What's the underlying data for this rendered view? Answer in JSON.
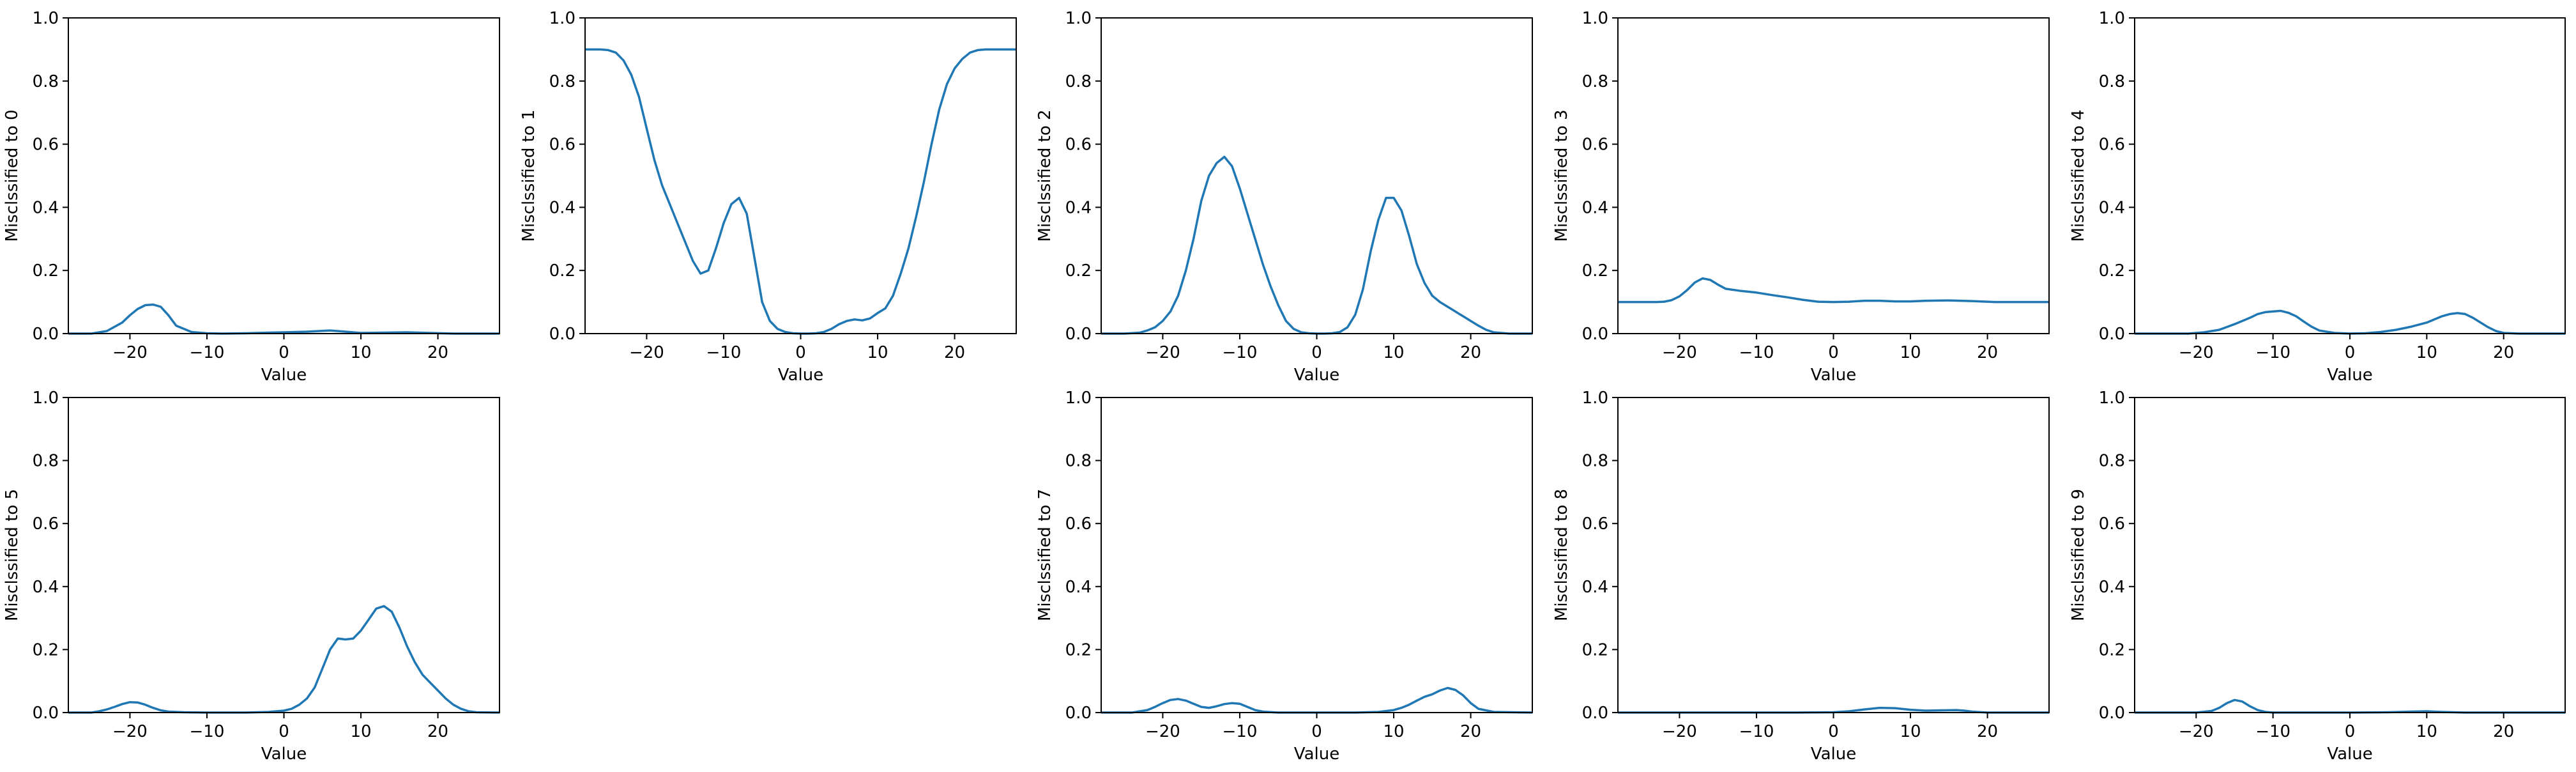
{
  "chart_data": [
    {
      "type": "line",
      "xlabel": "Value",
      "ylabel": "Misclssified to 0",
      "xlim": [
        -28,
        28
      ],
      "ylim": [
        0,
        1
      ],
      "x_ticks": [
        -20,
        -10,
        0,
        10,
        20
      ],
      "y_ticks": [
        0.0,
        0.2,
        0.4,
        0.6,
        0.8,
        1.0
      ],
      "series": [
        {
          "color": "#1f77b4",
          "x": [
            -28,
            -25,
            -23,
            -21,
            -20,
            -19,
            -18,
            -17,
            -16,
            -15,
            -14,
            -12,
            -10,
            -8,
            -5,
            -2,
            0,
            3,
            6,
            8,
            10,
            13,
            16,
            19,
            22,
            25,
            28
          ],
          "y": [
            0,
            0,
            0.008,
            0.035,
            0.058,
            0.078,
            0.09,
            0.092,
            0.085,
            0.058,
            0.025,
            0.005,
            0.001,
            0,
            0.001,
            0.003,
            0.004,
            0.006,
            0.01,
            0.006,
            0.002,
            0.003,
            0.004,
            0.002,
            0,
            0,
            0
          ]
        }
      ]
    },
    {
      "type": "line",
      "xlabel": "Value",
      "ylabel": "Misclssified to 1",
      "xlim": [
        -28,
        28
      ],
      "ylim": [
        0,
        1
      ],
      "x_ticks": [
        -20,
        -10,
        0,
        10,
        20
      ],
      "y_ticks": [
        0.0,
        0.2,
        0.4,
        0.6,
        0.8,
        1.0
      ],
      "series": [
        {
          "color": "#1f77b4",
          "x": [
            -28,
            -26,
            -25,
            -24,
            -23,
            -22,
            -21,
            -20,
            -19,
            -18,
            -17,
            -16,
            -15,
            -14,
            -13,
            -12,
            -11,
            -10,
            -9,
            -8,
            -7,
            -6,
            -5,
            -4,
            -3,
            -2,
            -1,
            0,
            1,
            2,
            3,
            4,
            5,
            6,
            7,
            8,
            9,
            10,
            11,
            12,
            13,
            14,
            15,
            16,
            17,
            18,
            19,
            20,
            21,
            22,
            23,
            24,
            25,
            26,
            27,
            28
          ],
          "y": [
            0.9,
            0.9,
            0.898,
            0.89,
            0.865,
            0.82,
            0.75,
            0.65,
            0.55,
            0.47,
            0.41,
            0.35,
            0.29,
            0.23,
            0.19,
            0.2,
            0.27,
            0.35,
            0.41,
            0.43,
            0.38,
            0.24,
            0.1,
            0.04,
            0.015,
            0.005,
            0.001,
            0,
            0,
            0.001,
            0.005,
            0.015,
            0.03,
            0.04,
            0.045,
            0.042,
            0.048,
            0.065,
            0.08,
            0.12,
            0.19,
            0.27,
            0.37,
            0.48,
            0.6,
            0.71,
            0.79,
            0.84,
            0.87,
            0.89,
            0.898,
            0.9,
            0.9,
            0.9,
            0.9,
            0.9
          ]
        }
      ]
    },
    {
      "type": "line",
      "xlabel": "Value",
      "ylabel": "Misclssified to 2",
      "xlim": [
        -28,
        28
      ],
      "ylim": [
        0,
        1
      ],
      "x_ticks": [
        -20,
        -10,
        0,
        10,
        20
      ],
      "y_ticks": [
        0.0,
        0.2,
        0.4,
        0.6,
        0.8,
        1.0
      ],
      "series": [
        {
          "color": "#1f77b4",
          "x": [
            -28,
            -25,
            -23,
            -22,
            -21,
            -20,
            -19,
            -18,
            -17,
            -16,
            -15,
            -14,
            -13,
            -12,
            -11,
            -10,
            -9,
            -8,
            -7,
            -6,
            -5,
            -4,
            -3,
            -2,
            -1,
            0,
            1,
            2,
            3,
            4,
            5,
            6,
            7,
            8,
            9,
            10,
            11,
            12,
            13,
            14,
            15,
            16,
            17,
            18,
            19,
            20,
            21,
            22,
            23,
            25,
            28
          ],
          "y": [
            0,
            0,
            0.003,
            0.01,
            0.02,
            0.04,
            0.07,
            0.12,
            0.2,
            0.3,
            0.42,
            0.5,
            0.54,
            0.56,
            0.53,
            0.46,
            0.38,
            0.3,
            0.22,
            0.15,
            0.09,
            0.04,
            0.015,
            0.004,
            0.001,
            0,
            0,
            0.001,
            0.005,
            0.02,
            0.06,
            0.14,
            0.26,
            0.36,
            0.43,
            0.43,
            0.39,
            0.31,
            0.22,
            0.16,
            0.12,
            0.1,
            0.085,
            0.07,
            0.055,
            0.04,
            0.025,
            0.012,
            0.004,
            0,
            0
          ]
        }
      ]
    },
    {
      "type": "line",
      "xlabel": "Value",
      "ylabel": "Misclssified to 3",
      "xlim": [
        -28,
        28
      ],
      "ylim": [
        0,
        1
      ],
      "x_ticks": [
        -20,
        -10,
        0,
        10,
        20
      ],
      "y_ticks": [
        0.0,
        0.2,
        0.4,
        0.6,
        0.8,
        1.0
      ],
      "series": [
        {
          "color": "#1f77b4",
          "x": [
            -28,
            -25,
            -23,
            -22,
            -21,
            -20,
            -19,
            -18,
            -17,
            -16,
            -15,
            -14,
            -12,
            -10,
            -8,
            -6,
            -4,
            -2,
            0,
            2,
            4,
            6,
            8,
            10,
            12,
            15,
            18,
            21,
            25,
            28
          ],
          "y": [
            0.1,
            0.1,
            0.1,
            0.101,
            0.106,
            0.118,
            0.138,
            0.162,
            0.175,
            0.17,
            0.155,
            0.142,
            0.135,
            0.13,
            0.122,
            0.115,
            0.107,
            0.101,
            0.1,
            0.101,
            0.104,
            0.104,
            0.102,
            0.102,
            0.104,
            0.105,
            0.103,
            0.1,
            0.1,
            0.1
          ]
        }
      ]
    },
    {
      "type": "line",
      "xlabel": "Value",
      "ylabel": "Misclssified to 4",
      "xlim": [
        -28,
        28
      ],
      "ylim": [
        0,
        1
      ],
      "x_ticks": [
        -20,
        -10,
        0,
        10,
        20
      ],
      "y_ticks": [
        0.0,
        0.2,
        0.4,
        0.6,
        0.8,
        1.0
      ],
      "series": [
        {
          "color": "#1f77b4",
          "x": [
            -28,
            -21,
            -19,
            -17,
            -15,
            -13,
            -12,
            -11,
            -10,
            -9,
            -8,
            -7,
            -6,
            -5,
            -4,
            -2,
            0,
            2,
            4,
            6,
            8,
            10,
            11,
            12,
            13,
            14,
            15,
            16,
            17,
            18,
            19,
            20,
            22,
            28
          ],
          "y": [
            0,
            0,
            0.004,
            0.012,
            0.03,
            0.05,
            0.062,
            0.068,
            0.07,
            0.072,
            0.066,
            0.055,
            0.038,
            0.022,
            0.01,
            0.002,
            0,
            0.001,
            0.005,
            0.012,
            0.022,
            0.035,
            0.045,
            0.055,
            0.062,
            0.065,
            0.062,
            0.05,
            0.035,
            0.02,
            0.008,
            0.002,
            0,
            0
          ]
        }
      ]
    },
    {
      "type": "line",
      "xlabel": "Value",
      "ylabel": "Misclssified to 5",
      "xlim": [
        -28,
        28
      ],
      "ylim": [
        0,
        1
      ],
      "x_ticks": [
        -20,
        -10,
        0,
        10,
        20
      ],
      "y_ticks": [
        0.0,
        0.2,
        0.4,
        0.6,
        0.8,
        1.0
      ],
      "series": [
        {
          "color": "#1f77b4",
          "x": [
            -28,
            -25,
            -24,
            -23,
            -22,
            -21,
            -20,
            -19,
            -18,
            -17,
            -16,
            -15,
            -13,
            -10,
            -5,
            -2,
            0,
            1,
            2,
            3,
            4,
            5,
            6,
            7,
            8,
            9,
            10,
            11,
            12,
            13,
            14,
            15,
            16,
            17,
            18,
            19,
            20,
            21,
            22,
            23,
            24,
            25,
            28
          ],
          "y": [
            0,
            0,
            0.004,
            0.01,
            0.018,
            0.027,
            0.033,
            0.032,
            0.025,
            0.015,
            0.007,
            0.003,
            0.001,
            0,
            0,
            0.002,
            0.006,
            0.012,
            0.025,
            0.045,
            0.08,
            0.14,
            0.2,
            0.235,
            0.232,
            0.235,
            0.26,
            0.295,
            0.33,
            0.338,
            0.32,
            0.27,
            0.21,
            0.16,
            0.12,
            0.095,
            0.07,
            0.045,
            0.025,
            0.012,
            0.004,
            0.001,
            0
          ]
        }
      ]
    },
    {
      "type": "line",
      "xlabel": "Value",
      "ylabel": "Misclssified to 7",
      "xlim": [
        -28,
        28
      ],
      "ylim": [
        0,
        1
      ],
      "x_ticks": [
        -20,
        -10,
        0,
        10,
        20
      ],
      "y_ticks": [
        0.0,
        0.2,
        0.4,
        0.6,
        0.8,
        1.0
      ],
      "series": [
        {
          "color": "#1f77b4",
          "x": [
            -28,
            -24,
            -22,
            -21,
            -20,
            -19,
            -18,
            -17,
            -16,
            -15,
            -14,
            -13,
            -12,
            -11,
            -10,
            -9,
            -8,
            -7,
            -5,
            0,
            5,
            8,
            10,
            11,
            12,
            13,
            14,
            15,
            16,
            17,
            18,
            19,
            20,
            21,
            23,
            28
          ],
          "y": [
            0,
            0,
            0.008,
            0.018,
            0.03,
            0.04,
            0.043,
            0.038,
            0.028,
            0.018,
            0.015,
            0.02,
            0.027,
            0.03,
            0.028,
            0.018,
            0.008,
            0.003,
            0,
            0,
            0,
            0.002,
            0.008,
            0.015,
            0.025,
            0.038,
            0.05,
            0.058,
            0.07,
            0.078,
            0.072,
            0.055,
            0.03,
            0.012,
            0.002,
            0
          ]
        }
      ]
    },
    {
      "type": "line",
      "xlabel": "Value",
      "ylabel": "Misclssified to 8",
      "xlim": [
        -28,
        28
      ],
      "ylim": [
        0,
        1
      ],
      "x_ticks": [
        -20,
        -10,
        0,
        10,
        20
      ],
      "y_ticks": [
        0.0,
        0.2,
        0.4,
        0.6,
        0.8,
        1.0
      ],
      "series": [
        {
          "color": "#1f77b4",
          "x": [
            -28,
            -5,
            0,
            2,
            4,
            6,
            8,
            10,
            12,
            14,
            16,
            17,
            18,
            20,
            28
          ],
          "y": [
            0,
            0,
            0.001,
            0.004,
            0.01,
            0.015,
            0.014,
            0.009,
            0.006,
            0.007,
            0.008,
            0.006,
            0.003,
            0,
            0
          ]
        }
      ]
    },
    {
      "type": "line",
      "xlabel": "Value",
      "ylabel": "Misclssified to 9",
      "xlim": [
        -28,
        28
      ],
      "ylim": [
        0,
        1
      ],
      "x_ticks": [
        -20,
        -10,
        0,
        10,
        20
      ],
      "y_ticks": [
        0.0,
        0.2,
        0.4,
        0.6,
        0.8,
        1.0
      ],
      "series": [
        {
          "color": "#1f77b4",
          "x": [
            -28,
            -20,
            -18,
            -17,
            -16,
            -15,
            -14,
            -13,
            -12,
            -11,
            -10,
            -5,
            0,
            5,
            8,
            10,
            12,
            15,
            28
          ],
          "y": [
            0,
            0,
            0.005,
            0.015,
            0.03,
            0.04,
            0.035,
            0.02,
            0.008,
            0.002,
            0,
            0,
            0,
            0.001,
            0.003,
            0.004,
            0.002,
            0,
            0
          ]
        }
      ]
    }
  ]
}
